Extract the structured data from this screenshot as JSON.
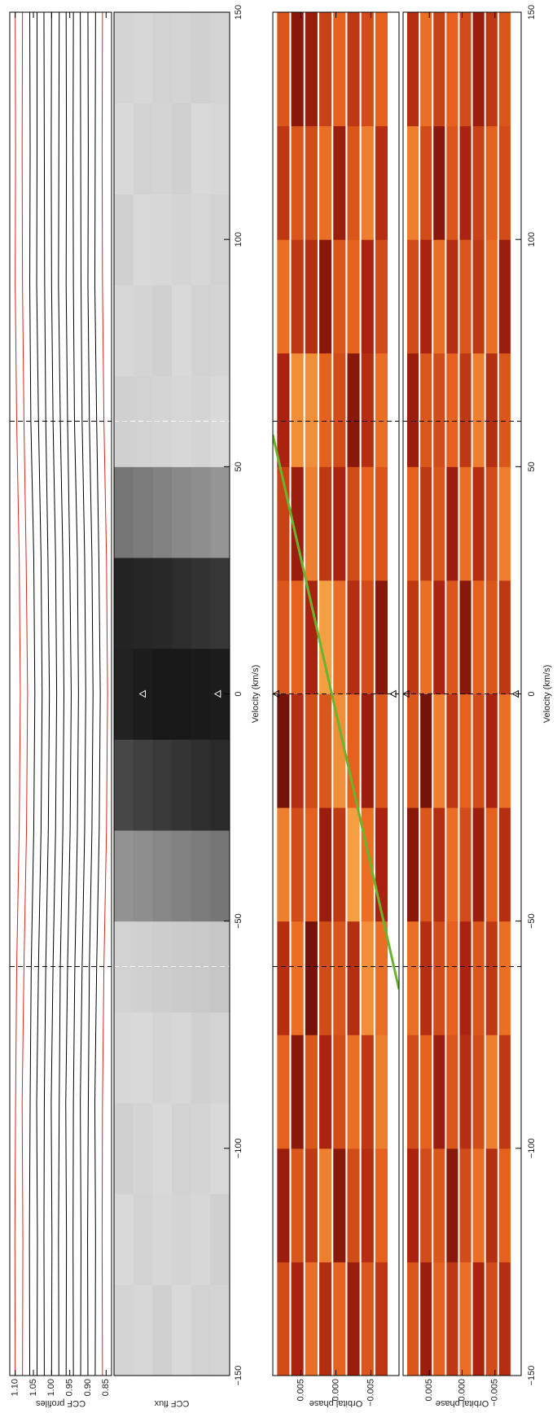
{
  "chart_data": [
    {
      "type": "line",
      "ylabel": "CCF profiles",
      "xlim": [
        -150,
        150
      ],
      "ylim": [
        0.835,
        1.115
      ],
      "yticks": [
        {
          "value": 1.1,
          "label": "1.10"
        },
        {
          "value": 1.05,
          "label": "1.05"
        },
        {
          "value": 1,
          "label": "1.00"
        },
        0.95,
        {
          "value": 0.9,
          "label": "0.90"
        },
        0.85
      ],
      "markers": [
        -60,
        60
      ],
      "marker_color": "#000000",
      "x": [
        -150,
        -120,
        -90,
        -60,
        -30,
        0,
        30,
        60,
        90,
        120,
        150
      ],
      "series": [
        {
          "color": "#d8261c",
          "values": [
            1.1,
            1.101,
            1.099,
            1.096,
            1.089,
            1.086,
            1.089,
            1.096,
            1.1,
            1.099,
            1.1
          ]
        },
        {
          "color": "#d8261c",
          "values": [
            1.08,
            1.079,
            1.081,
            1.076,
            1.069,
            1.066,
            1.07,
            1.076,
            1.08,
            1.081,
            1.08
          ]
        },
        {
          "color": "#000000",
          "values": [
            1.06,
            1.061,
            1.059,
            1.056,
            1.049,
            1.046,
            1.049,
            1.057,
            1.06,
            1.059,
            1.06
          ]
        },
        {
          "color": "#000000",
          "values": [
            1.04,
            1.039,
            1.041,
            1.036,
            1.029,
            1.026,
            1.029,
            1.036,
            1.041,
            1.04,
            1.04
          ]
        },
        {
          "color": "#000000",
          "values": [
            1.02,
            1.021,
            1.02,
            1.016,
            1.009,
            1.006,
            1.01,
            1.016,
            1.019,
            1.02,
            1.021
          ]
        },
        {
          "color": "#000000",
          "values": [
            1,
            0.999,
            1.001,
            0.996,
            0.989,
            0.986,
            0.989,
            0.996,
            1,
            1.001,
            1
          ]
        },
        {
          "color": "#000000",
          "values": [
            0.98,
            0.981,
            0.979,
            0.976,
            0.969,
            0.966,
            0.969,
            0.976,
            0.981,
            0.98,
            0.979
          ]
        },
        {
          "color": "#000000",
          "values": [
            0.96,
            0.959,
            0.961,
            0.956,
            0.949,
            0.946,
            0.95,
            0.956,
            0.96,
            0.959,
            0.96
          ]
        },
        {
          "color": "#000000",
          "values": [
            0.94,
            0.941,
            0.94,
            0.936,
            0.929,
            0.926,
            0.929,
            0.937,
            0.94,
            0.941,
            0.94
          ]
        },
        {
          "color": "#000000",
          "values": [
            0.92,
            0.919,
            0.921,
            0.916,
            0.909,
            0.906,
            0.909,
            0.916,
            0.919,
            0.92,
            0.921
          ]
        },
        {
          "color": "#000000",
          "values": [
            0.9,
            0.901,
            0.899,
            0.896,
            0.889,
            0.886,
            0.889,
            0.896,
            0.9,
            0.899,
            0.9
          ]
        },
        {
          "color": "#000000",
          "values": [
            0.88,
            0.879,
            0.881,
            0.876,
            0.869,
            0.866,
            0.87,
            0.876,
            0.881,
            0.88,
            0.879
          ]
        },
        {
          "color": "#d8261c",
          "values": [
            0.86,
            0.861,
            0.86,
            0.856,
            0.849,
            0.846,
            0.849,
            0.856,
            0.86,
            0.861,
            0.86
          ]
        }
      ]
    },
    {
      "type": "heatmap",
      "ylabel": "CCF flux",
      "xlabel": "Velocity (km/s)",
      "xlim": [
        -150,
        150
      ],
      "ylim": [
        -0.009,
        0.009
      ],
      "xticks": [
        {
          "value": -150,
          "label": "−150"
        },
        {
          "value": -100,
          "label": "−100"
        },
        {
          "value": -50,
          "label": "−50"
        },
        0,
        50,
        100,
        150
      ],
      "markers": [
        -60,
        60
      ],
      "marker_color": "#ffffff",
      "colors": [
        "#000000",
        "#ececec"
      ],
      "vlim": [
        0,
        1
      ],
      "triangles": {
        "x": [
          0,
          0
        ],
        "y": [
          0.0045,
          -0.0072
        ]
      },
      "x_edges": [
        -150,
        -130,
        -110,
        -90,
        -70,
        -50,
        -30,
        -10,
        10,
        30,
        50,
        70,
        90,
        110,
        130,
        150
      ],
      "y": [
        0.0075,
        0.0045,
        0.0015,
        -0.0015,
        -0.0045,
        -0.0075
      ],
      "values": [
        [
          0.9,
          0.92,
          0.88,
          0.91,
          0.89,
          0.62,
          0.3,
          0.14,
          0.15,
          0.5,
          0.88,
          0.91,
          0.88,
          0.92,
          0.9
        ],
        [
          0.91,
          0.89,
          0.9,
          0.92,
          0.88,
          0.6,
          0.27,
          0.12,
          0.16,
          0.52,
          0.89,
          0.9,
          0.92,
          0.89,
          0.91
        ],
        [
          0.88,
          0.91,
          0.92,
          0.9,
          0.87,
          0.57,
          0.24,
          0.1,
          0.17,
          0.55,
          0.9,
          0.88,
          0.91,
          0.9,
          0.89
        ],
        [
          0.92,
          0.9,
          0.89,
          0.91,
          0.86,
          0.55,
          0.22,
          0.1,
          0.19,
          0.58,
          0.91,
          0.92,
          0.9,
          0.88,
          0.9
        ],
        [
          0.89,
          0.91,
          0.9,
          0.88,
          0.85,
          0.52,
          0.2,
          0.11,
          0.21,
          0.6,
          0.9,
          0.89,
          0.91,
          0.92,
          0.88
        ],
        [
          0.9,
          0.88,
          0.92,
          0.9,
          0.84,
          0.5,
          0.18,
          0.12,
          0.23,
          0.63,
          0.92,
          0.9,
          0.89,
          0.91,
          0.9
        ]
      ]
    },
    {
      "type": "heatmap",
      "ylabel": "Orbital phase",
      "xlim": [
        -150,
        150
      ],
      "ylim": [
        -0.009,
        0.009
      ],
      "yticks": [
        0.005,
        {
          "value": 0,
          "label": "0.000"
        },
        {
          "value": -0.005,
          "label": "−0.005"
        }
      ],
      "markers": [
        -60,
        0,
        60
      ],
      "marker_color": "#000000",
      "colors": [
        "#2a0000",
        "#a8200f",
        "#e8641e",
        "#ffd060"
      ],
      "vlim": [
        -1,
        1
      ],
      "triangles": {
        "x": [
          0,
          0
        ],
        "y": [
          0.0085,
          -0.0082
        ]
      },
      "track": {
        "x": [
          57,
          -65
        ],
        "y": [
          0.009,
          -0.009
        ],
        "color": "#6ab42d"
      },
      "x_edges": [
        -150,
        -125,
        -100,
        -75,
        -50,
        -25,
        0,
        25,
        50,
        75,
        100,
        125,
        150
      ],
      "y": [
        0.0075,
        0.0055,
        0.0035,
        0.0015,
        -0.0005,
        -0.0025,
        -0.0045,
        -0.0065
      ],
      "values": [
        [
          0.1,
          -0.4,
          0.3,
          -0.2,
          0.5,
          -0.6,
          0.2,
          0.0,
          -0.3,
          0.4,
          -0.1,
          0.2
        ],
        [
          -0.3,
          0.2,
          -0.5,
          0.4,
          0.1,
          -0.2,
          0.3,
          -0.4,
          0.6,
          -0.1,
          0.2,
          -0.5
        ],
        [
          0.4,
          -0.1,
          0.2,
          -0.6,
          0.3,
          0.1,
          -0.3,
          0.5,
          0.6,
          -0.2,
          0.1,
          -0.4
        ],
        [
          -0.2,
          0.5,
          -0.3,
          0.1,
          -0.4,
          0.2,
          0.7,
          -0.1,
          0.3,
          -0.5,
          0.4,
          0.0
        ],
        [
          0.3,
          -0.5,
          0.1,
          0.2,
          -0.1,
          0.6,
          0.4,
          -0.3,
          0.1,
          0.2,
          -0.4,
          0.3
        ],
        [
          -0.4,
          0.1,
          0.4,
          -0.2,
          0.7,
          0.3,
          -0.2,
          0.1,
          -0.5,
          0.3,
          0.2,
          -0.1
        ],
        [
          0.2,
          -0.2,
          -0.1,
          0.6,
          0.4,
          -0.4,
          0.1,
          0.3,
          -0.2,
          -0.3,
          0.5,
          0.1
        ],
        [
          -0.1,
          0.3,
          0.5,
          0.4,
          -0.3,
          0.2,
          -0.5,
          0.2,
          0.4,
          0.1,
          -0.2,
          0.3
        ]
      ]
    },
    {
      "type": "heatmap",
      "ylabel": "Orbital phase",
      "xlabel": "Velocity (km/s)",
      "xlim": [
        -150,
        150
      ],
      "ylim": [
        -0.009,
        0.009
      ],
      "xticks": [
        {
          "value": -150,
          "label": "−150"
        },
        {
          "value": -100,
          "label": "−100"
        },
        {
          "value": -50,
          "label": "−50"
        },
        0,
        50,
        100,
        150
      ],
      "yticks": [
        0.005,
        {
          "value": 0,
          "label": "0.000"
        },
        {
          "value": -0.005,
          "label": "−0.005"
        }
      ],
      "markers": [
        -60,
        0,
        60
      ],
      "marker_color": "#000000",
      "colors": [
        "#2a0000",
        "#a8200f",
        "#e8641e",
        "#ffd060"
      ],
      "vlim": [
        -1,
        1
      ],
      "triangles": {
        "x": [
          0,
          0
        ],
        "y": [
          0.0085,
          -0.0082
        ]
      },
      "x_edges": [
        -150,
        -125,
        -100,
        -75,
        -50,
        -25,
        0,
        25,
        50,
        75,
        100,
        125,
        150
      ],
      "y": [
        0.0075,
        0.0055,
        0.0035,
        0.0015,
        -0.0005,
        -0.0025,
        -0.0045,
        -0.0065
      ],
      "values": [
        [
          0.2,
          -0.3,
          0.1,
          0.4,
          -0.5,
          0.2,
          -0.1,
          0.3,
          -0.4,
          0.1,
          0.5,
          -0.2
        ],
        [
          -0.4,
          0.1,
          0.3,
          -0.2,
          0.2,
          -0.6,
          0.4,
          -0.1,
          0.2,
          -0.3,
          0.1,
          0.4
        ],
        [
          0.3,
          0.2,
          -0.4,
          0.1,
          -0.2,
          0.5,
          -0.3,
          0.2,
          0.1,
          0.4,
          -0.5,
          0.0
        ],
        [
          -0.1,
          -0.5,
          0.2,
          0.3,
          0.4,
          -0.1,
          0.2,
          -0.4,
          0.3,
          -0.2,
          0.2,
          0.3
        ],
        [
          0.4,
          0.1,
          -0.2,
          -0.3,
          0.1,
          0.3,
          -0.5,
          0.4,
          -0.1,
          0.2,
          -0.3,
          0.1
        ],
        [
          -0.3,
          0.4,
          0.1,
          0.2,
          -0.4,
          0.1,
          0.3,
          -0.2,
          0.5,
          -0.1,
          0.0,
          -0.4
        ],
        [
          0.1,
          -0.2,
          0.5,
          -0.1,
          0.3,
          -0.3,
          0.2,
          0.1,
          -0.2,
          0.4,
          0.3,
          -0.1
        ],
        [
          -0.2,
          0.3,
          -0.1,
          0.4,
          -0.2,
          0.4,
          -0.1,
          0.5,
          0.2,
          -0.4,
          0.1,
          0.2
        ]
      ]
    }
  ]
}
